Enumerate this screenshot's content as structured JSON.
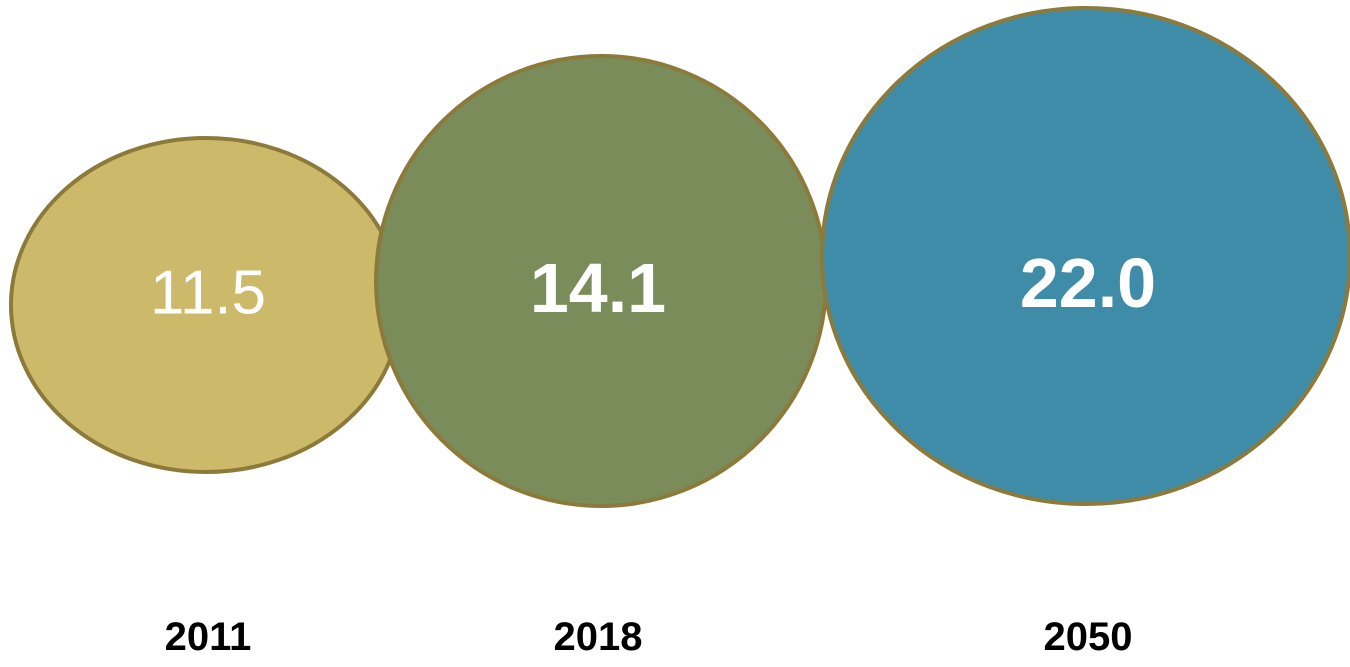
{
  "chart_data": {
    "type": "bubble",
    "categories": [
      "2011",
      "2018",
      "2050"
    ],
    "values": [
      11.5,
      14.1,
      22.0
    ],
    "value_labels": [
      "11.5",
      "14.1",
      "22.0"
    ],
    "colors": [
      "#cdb96a",
      "#7a8c59",
      "#3f8ca8"
    ],
    "outline_color": "#8c7a3a",
    "title": "",
    "xlabel": "",
    "ylabel": "",
    "legend": "none",
    "grid": false
  }
}
